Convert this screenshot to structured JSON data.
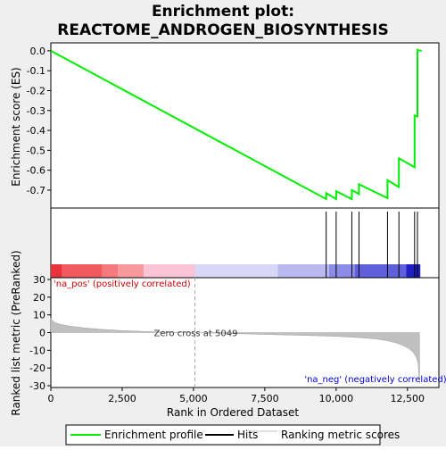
{
  "chart_data": {
    "type": "line",
    "title_line1": "Enrichment plot:",
    "title_line2": "REACTOME_ANDROGEN_BIOSYNTHESIS",
    "es_panel": {
      "ylabel": "Enrichment score (ES)",
      "ylim": [
        -0.79,
        0.04
      ],
      "yticks": [
        0.0,
        -0.1,
        -0.2,
        -0.3,
        -0.4,
        -0.5,
        -0.6,
        -0.7
      ],
      "ytick_labels": [
        "0.0",
        "-0.1",
        "-0.2",
        "-0.3",
        "-0.4",
        "-0.5",
        "-0.6",
        "-0.7"
      ],
      "line_color": "#00ee00",
      "profile": {
        "x": [
          0,
          9650,
          9650,
          10000,
          10000,
          10550,
          10550,
          10800,
          10800,
          11800,
          11800,
          12200,
          12200,
          12750,
          12750,
          12850,
          12850,
          12900,
          13000
        ],
        "y": [
          0.0,
          -0.745,
          -0.715,
          -0.745,
          -0.705,
          -0.745,
          -0.7,
          -0.72,
          -0.67,
          -0.74,
          -0.65,
          -0.685,
          -0.54,
          -0.585,
          -0.325,
          -0.33,
          0.005,
          0.002,
          0.0
        ]
      }
    },
    "hits": [
      9650,
      10000,
      10550,
      10800,
      11800,
      12200,
      12750,
      12850
    ],
    "colorbar": {
      "bands": [
        {
          "from": 0,
          "to": 400,
          "color": "#e8323c"
        },
        {
          "from": 400,
          "to": 1800,
          "color": "#f25a60"
        },
        {
          "from": 1800,
          "to": 2350,
          "color": "#f47a7e"
        },
        {
          "from": 2350,
          "to": 3250,
          "color": "#f7999c"
        },
        {
          "from": 3250,
          "to": 5049,
          "color": "#fbc4d6"
        },
        {
          "from": 5049,
          "to": 7950,
          "color": "#d8d8f6"
        },
        {
          "from": 7950,
          "to": 9750,
          "color": "#babaf0"
        },
        {
          "from": 9750,
          "to": 10650,
          "color": "#8c8ce8"
        },
        {
          "from": 10650,
          "to": 12450,
          "color": "#6060dc"
        },
        {
          "from": 12450,
          "to": 12950,
          "color": "#2020c0"
        }
      ]
    },
    "metric_panel": {
      "ylabel": "Ranked list metric (PreRanked)",
      "xlabel": "Rank in Ordered Dataset",
      "ylim": [
        -31,
        31
      ],
      "yticks": [
        30,
        20,
        10,
        0,
        -10,
        -20,
        -30
      ],
      "ytick_labels": [
        "30",
        "20",
        "10",
        "0",
        "-10",
        "-20",
        "-30"
      ],
      "xlim": [
        0,
        13600
      ],
      "xticks": [
        0,
        2500,
        5000,
        7500,
        10000,
        12500
      ],
      "xtick_labels": [
        "0",
        "2,500",
        "5,000",
        "7,500",
        "10,000",
        "12,500"
      ],
      "zero_cross": 5049,
      "zero_cross_label": "Zero cross at 5049",
      "pos_label": "'na_pos' (positively correlated)",
      "neg_label": "'na_neg' (negatively correlated)",
      "pos_color": "#cc0000",
      "neg_color": "#0000cc",
      "metric": {
        "x": [
          0,
          100,
          300,
          700,
          1200,
          1800,
          2500,
          3300,
          4200,
          5049,
          6000,
          7000,
          8000,
          9000,
          10000,
          10800,
          11400,
          11800,
          12100,
          12350,
          12550,
          12700,
          12800,
          12870,
          12920
        ],
        "y": [
          8.0,
          6.0,
          4.8,
          3.6,
          2.6,
          1.8,
          1.1,
          0.6,
          0.25,
          0.0,
          -0.4,
          -0.8,
          -1.2,
          -1.6,
          -2.1,
          -2.8,
          -3.6,
          -4.6,
          -5.8,
          -7.3,
          -9.0,
          -11.0,
          -13.5,
          -17.0,
          -29.0
        ]
      }
    },
    "legend": {
      "items": [
        {
          "label": "Enrichment profile",
          "color": "#00ee00"
        },
        {
          "label": "Hits",
          "color": "#000000"
        },
        {
          "label": "Ranking metric scores",
          "color": "#c0c0c0"
        }
      ]
    }
  }
}
